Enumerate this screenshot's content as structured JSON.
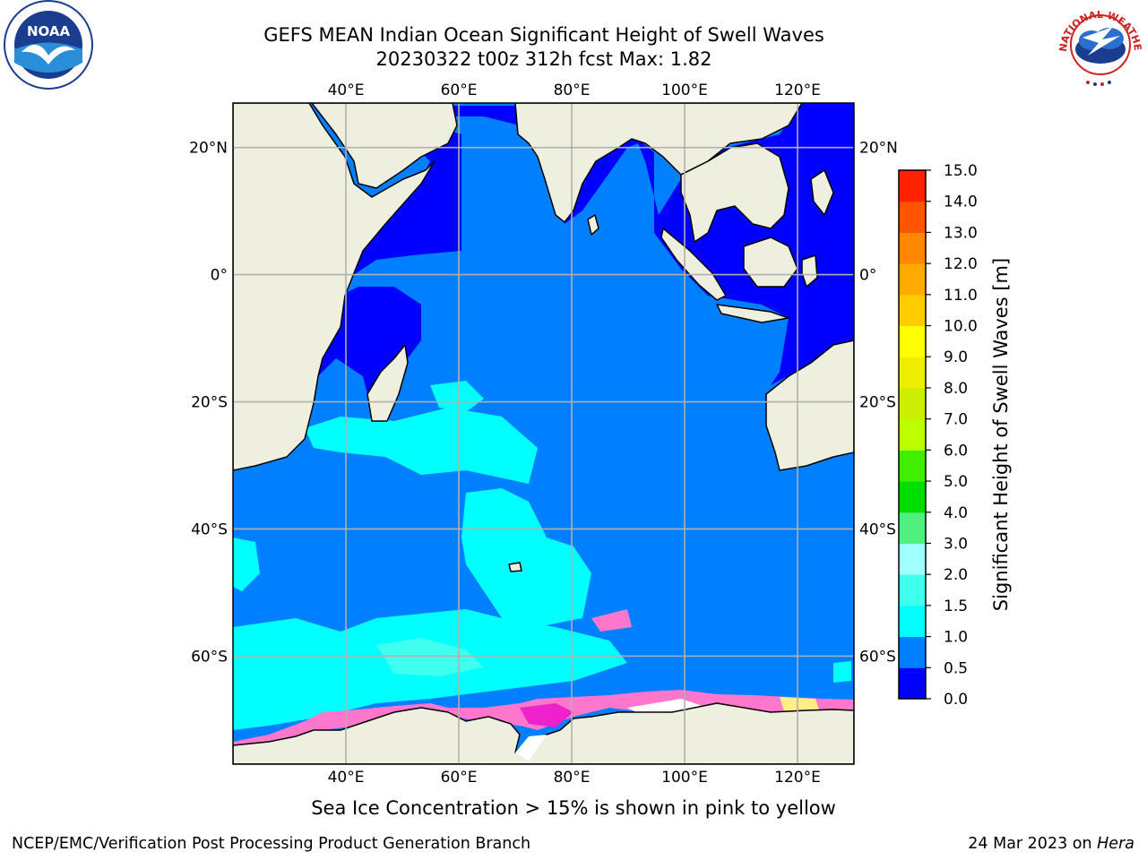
{
  "title": {
    "line1": "GEFS MEAN Indian Ocean Significant Height of Swell Waves",
    "line2": "20230322 t00z 312h fcst   Max: 1.82"
  },
  "map": {
    "lon_range": [
      20,
      130
    ],
    "lat_range": [
      -77,
      27
    ],
    "lon_ticks": [
      {
        "value": 40,
        "label": "40°E"
      },
      {
        "value": 60,
        "label": "60°E"
      },
      {
        "value": 80,
        "label": "80°E"
      },
      {
        "value": 100,
        "label": "100°E"
      },
      {
        "value": 120,
        "label": "120°E"
      }
    ],
    "lat_ticks": [
      {
        "value": 20,
        "label": "20°N"
      },
      {
        "value": 0,
        "label": "0°"
      },
      {
        "value": -20,
        "label": "20°S"
      },
      {
        "value": -40,
        "label": "40°S"
      },
      {
        "value": -60,
        "label": "60°S"
      }
    ],
    "colors": {
      "land": "#efefdf",
      "coast": "#000000",
      "grid": "#b0b0b0",
      "ice_pink": "#ff77cc",
      "ice_magenta": "#ee22cc",
      "ice_yellow": "#ffee88",
      "ice_white": "#ffffff"
    }
  },
  "colorbar": {
    "label": "Significant Height of Swell Waves [m]",
    "levels": [
      {
        "value": "0.0",
        "color": "#0000ff"
      },
      {
        "value": "0.5",
        "color": "#0080ff"
      },
      {
        "value": "1.0",
        "color": "#00ffff"
      },
      {
        "value": "1.5",
        "color": "#40ffee"
      },
      {
        "value": "2.0",
        "color": "#a0ffff"
      },
      {
        "value": "3.0",
        "color": "#50f080"
      },
      {
        "value": "4.0",
        "color": "#00dd00"
      },
      {
        "value": "5.0",
        "color": "#40ee00"
      },
      {
        "value": "6.0",
        "color": "#bbff00"
      },
      {
        "value": "7.0",
        "color": "#ccee00"
      },
      {
        "value": "8.0",
        "color": "#eeee00"
      },
      {
        "value": "9.0",
        "color": "#ffff00"
      },
      {
        "value": "10.0",
        "color": "#ffcc00"
      },
      {
        "value": "11.0",
        "color": "#ffaa00"
      },
      {
        "value": "12.0",
        "color": "#ff8800"
      },
      {
        "value": "13.0",
        "color": "#ff5500"
      },
      {
        "value": "14.0",
        "color": "#ff2200"
      },
      {
        "value": "15.0",
        "color": null
      }
    ]
  },
  "caption": "Sea Ice Concentration > 15% is shown in pink to yellow",
  "footer": {
    "left": "NCEP/EMC/Verification Post Processing Product Generation Branch",
    "right_prefix": "24 Mar 2023 on ",
    "right_host": "Hera"
  },
  "logos": {
    "noaa": {
      "text": "NOAA",
      "icon": "noaa-logo-icon"
    },
    "nws": {
      "text": "NATIONAL WEATHER SERVICE",
      "icon": "nws-logo-icon"
    }
  }
}
